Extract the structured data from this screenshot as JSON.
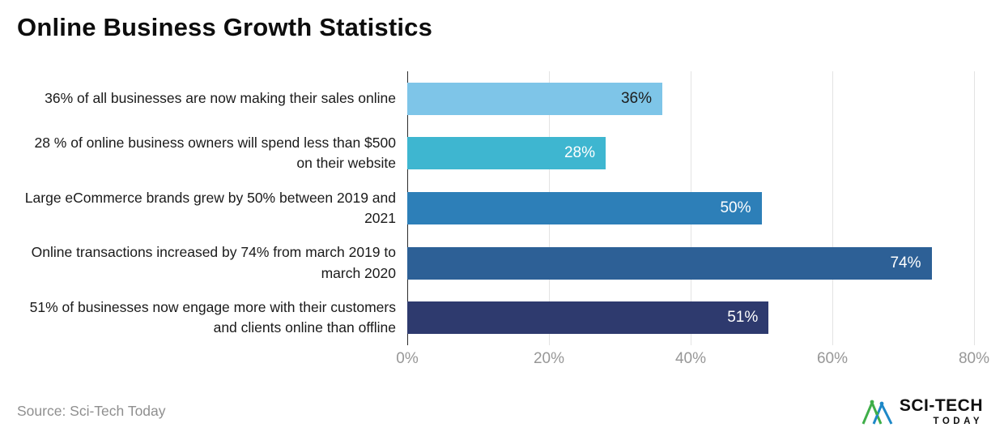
{
  "title": "Online Business Growth Statistics",
  "source": "Source: Sci-Tech Today",
  "logo": {
    "line1": "SCI-TECH",
    "line2": "TODAY"
  },
  "chart_data": {
    "type": "bar",
    "orientation": "horizontal",
    "title": "Online Business Growth Statistics",
    "categories": [
      "36% of all businesses are now making their sales online",
      "28 % of online business owners will spend less than $500 on their website",
      "Large eCommerce brands grew by 50% between 2019 and 2021",
      "Online transactions increased by 74% from march 2019 to march 2020",
      "51% of businesses now engage more with their customers and clients online than offline"
    ],
    "values": [
      36,
      28,
      50,
      74,
      51
    ],
    "value_labels": [
      "36%",
      "28%",
      "50%",
      "74%",
      "51%"
    ],
    "bar_colors": [
      "#7ec5e8",
      "#3eb6d0",
      "#2d7fb8",
      "#2d6096",
      "#2e3a6e"
    ],
    "value_label_colors": [
      "#1d1d1d",
      "#ffffff",
      "#ffffff",
      "#ffffff",
      "#ffffff"
    ],
    "xlim": [
      0,
      80
    ],
    "x_ticks": [
      "0%",
      "20%",
      "40%",
      "60%",
      "80%"
    ],
    "x_tick_values": [
      0,
      20,
      40,
      60,
      80
    ],
    "grid": true,
    "grid_color": "#e3e3e3",
    "axis_line_color": "#2b2b2b",
    "tick_label_color": "#979797",
    "legend": "none"
  }
}
